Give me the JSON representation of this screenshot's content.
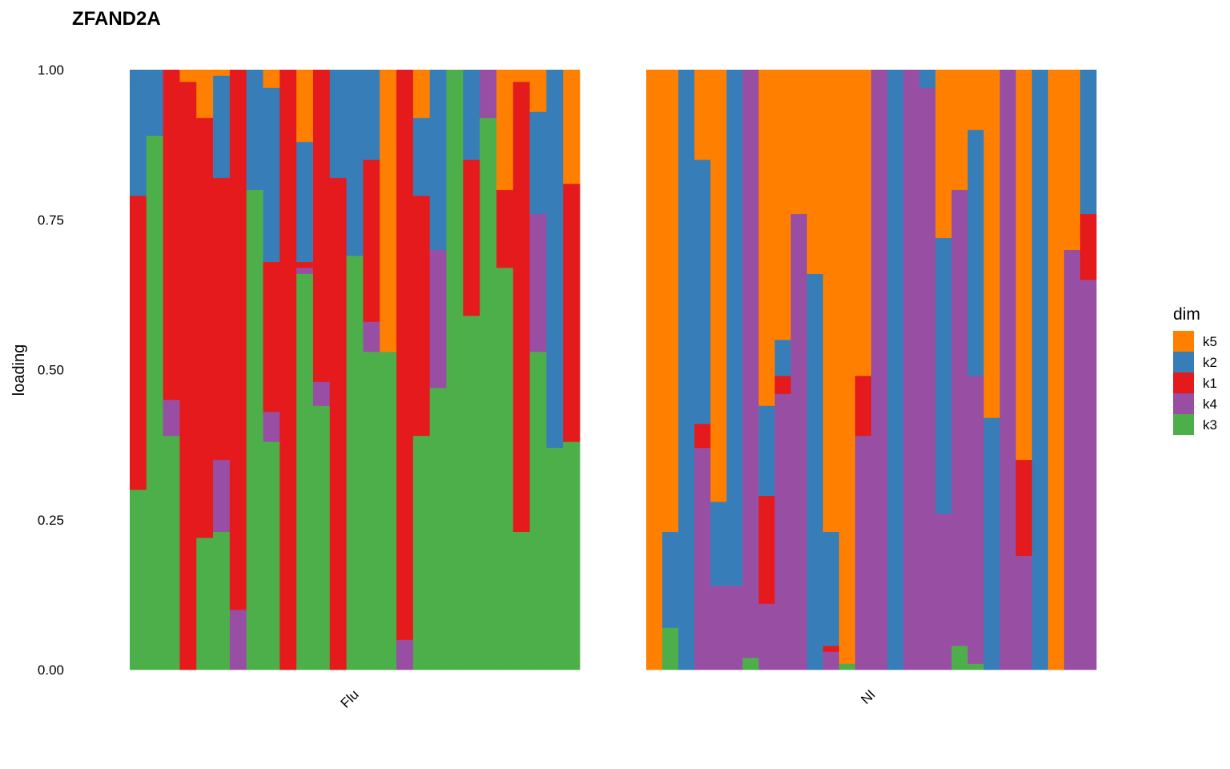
{
  "chart_data": {
    "type": "bar",
    "stacked": true,
    "title": "ZFAND2A",
    "ylabel": "loading",
    "xlabel": "",
    "ylim": [
      0,
      1
    ],
    "yticks": [
      "0.00",
      "0.25",
      "0.50",
      "0.75",
      "1.00"
    ],
    "grid": false,
    "legend": {
      "title": "dim",
      "placement": "right",
      "entries": [
        {
          "label": "k5",
          "color": "#FF7F00"
        },
        {
          "label": "k2",
          "color": "#377EB8"
        },
        {
          "label": "k1",
          "color": "#E41A1C"
        },
        {
          "label": "k4",
          "color": "#984EA3"
        },
        {
          "label": "k3",
          "color": "#4DAF4A"
        }
      ]
    },
    "stack_order_bottom_to_top": [
      "k3",
      "k4",
      "k1",
      "k2",
      "k5"
    ],
    "facets": [
      {
        "label": "Flu",
        "bars": [
          {
            "k3": 0.3,
            "k4": 0.0,
            "k1": 0.49,
            "k2": 0.21,
            "k5": 0.0
          },
          {
            "k3": 0.89,
            "k4": 0.0,
            "k1": 0.0,
            "k2": 0.11,
            "k5": 0.0
          },
          {
            "k3": 0.39,
            "k4": 0.06,
            "k1": 0.55,
            "k2": 0.0,
            "k5": 0.0
          },
          {
            "k3": 0.0,
            "k4": 0.0,
            "k1": 0.98,
            "k2": 0.0,
            "k5": 0.02
          },
          {
            "k3": 0.22,
            "k4": 0.0,
            "k1": 0.7,
            "k2": 0.0,
            "k5": 0.08
          },
          {
            "k3": 0.23,
            "k4": 0.12,
            "k1": 0.47,
            "k2": 0.17,
            "k5": 0.01
          },
          {
            "k3": 0.0,
            "k4": 0.1,
            "k1": 0.9,
            "k2": 0.0,
            "k5": 0.0
          },
          {
            "k3": 0.8,
            "k4": 0.0,
            "k1": 0.0,
            "k2": 0.2,
            "k5": 0.0
          },
          {
            "k3": 0.38,
            "k4": 0.05,
            "k1": 0.25,
            "k2": 0.29,
            "k5": 0.03
          },
          {
            "k3": 0.0,
            "k4": 0.0,
            "k1": 1.0,
            "k2": 0.0,
            "k5": 0.0
          },
          {
            "k3": 0.66,
            "k4": 0.01,
            "k1": 0.01,
            "k2": 0.2,
            "k5": 0.12
          },
          {
            "k3": 0.44,
            "k4": 0.04,
            "k1": 0.52,
            "k2": 0.0,
            "k5": 0.0
          },
          {
            "k3": 0.0,
            "k4": 0.0,
            "k1": 0.82,
            "k2": 0.18,
            "k5": 0.0
          },
          {
            "k3": 0.69,
            "k4": 0.0,
            "k1": 0.0,
            "k2": 0.31,
            "k5": 0.0
          },
          {
            "k3": 0.53,
            "k4": 0.05,
            "k1": 0.27,
            "k2": 0.15,
            "k5": 0.0
          },
          {
            "k3": 0.53,
            "k4": 0.0,
            "k1": 0.0,
            "k2": 0.0,
            "k5": 0.47
          },
          {
            "k3": 0.0,
            "k4": 0.05,
            "k1": 0.95,
            "k2": 0.0,
            "k5": 0.0
          },
          {
            "k3": 0.39,
            "k4": 0.0,
            "k1": 0.4,
            "k2": 0.13,
            "k5": 0.08
          },
          {
            "k3": 0.47,
            "k4": 0.23,
            "k1": 0.0,
            "k2": 0.3,
            "k5": 0.0
          },
          {
            "k3": 0.91,
            "k4": 0.0,
            "k1": 0.0,
            "k2": 0.0,
            "k5": 0.0
          },
          {
            "k3": 0.59,
            "k4": 0.0,
            "k1": 0.26,
            "k2": 0.15,
            "k5": 0.0
          },
          {
            "k3": 0.92,
            "k4": 0.08,
            "k1": 0.0,
            "k2": 0.0,
            "k5": 0.0
          },
          {
            "k3": 0.67,
            "k4": 0.0,
            "k1": 0.13,
            "k2": 0.0,
            "k5": 0.2
          },
          {
            "k3": 0.23,
            "k4": 0.0,
            "k1": 0.75,
            "k2": 0.0,
            "k5": 0.02
          },
          {
            "k3": 0.53,
            "k4": 0.23,
            "k1": 0.0,
            "k2": 0.17,
            "k5": 0.07
          },
          {
            "k3": 0.37,
            "k4": 0.0,
            "k1": 0.0,
            "k2": 0.63,
            "k5": 0.0
          },
          {
            "k3": 0.38,
            "k4": 0.0,
            "k1": 0.43,
            "k2": 0.0,
            "k5": 0.19
          }
        ]
      },
      {
        "label": "NI",
        "bars": [
          {
            "k3": 0.0,
            "k4": 0.0,
            "k1": 0.0,
            "k2": 0.0,
            "k5": 1.0
          },
          {
            "k3": 0.07,
            "k4": 0.0,
            "k1": 0.0,
            "k2": 0.16,
            "k5": 0.77
          },
          {
            "k3": 0.0,
            "k4": 0.0,
            "k1": 0.0,
            "k2": 1.0,
            "k5": 0.0
          },
          {
            "k3": 0.0,
            "k4": 0.37,
            "k1": 0.04,
            "k2": 0.44,
            "k5": 0.15
          },
          {
            "k3": 0.0,
            "k4": 0.14,
            "k1": 0.0,
            "k2": 0.14,
            "k5": 0.72
          },
          {
            "k3": 0.0,
            "k4": 0.14,
            "k1": 0.0,
            "k2": 0.86,
            "k5": 0.0
          },
          {
            "k3": 0.02,
            "k4": 0.98,
            "k1": 0.0,
            "k2": 0.0,
            "k5": 0.0
          },
          {
            "k3": 0.0,
            "k4": 0.11,
            "k1": 0.18,
            "k2": 0.15,
            "k5": 0.56
          },
          {
            "k3": 0.0,
            "k4": 0.46,
            "k1": 0.03,
            "k2": 0.06,
            "k5": 0.45
          },
          {
            "k3": 0.0,
            "k4": 0.76,
            "k1": 0.0,
            "k2": 0.0,
            "k5": 0.24
          },
          {
            "k3": 0.0,
            "k4": 0.0,
            "k1": 0.0,
            "k2": 0.66,
            "k5": 0.34
          },
          {
            "k3": 0.0,
            "k4": 0.03,
            "k1": 0.01,
            "k2": 0.19,
            "k5": 0.77
          },
          {
            "k3": 0.01,
            "k4": 0.0,
            "k1": 0.0,
            "k2": 0.0,
            "k5": 0.99
          },
          {
            "k3": 0.0,
            "k4": 0.39,
            "k1": 0.1,
            "k2": 0.0,
            "k5": 0.51
          },
          {
            "k3": 0.0,
            "k4": 1.0,
            "k1": 0.0,
            "k2": 0.0,
            "k5": 0.0
          },
          {
            "k3": 0.0,
            "k4": 0.0,
            "k1": 0.0,
            "k2": 1.0,
            "k5": 0.0
          },
          {
            "k3": 0.0,
            "k4": 1.0,
            "k1": 0.0,
            "k2": 0.0,
            "k5": 0.0
          },
          {
            "k3": 0.0,
            "k4": 0.97,
            "k1": 0.0,
            "k2": 0.03,
            "k5": 0.0
          },
          {
            "k3": 0.0,
            "k4": 0.26,
            "k1": 0.0,
            "k2": 0.46,
            "k5": 0.28
          },
          {
            "k3": 0.04,
            "k4": 0.76,
            "k1": 0.0,
            "k2": 0.0,
            "k5": 0.2
          },
          {
            "k3": 0.01,
            "k4": 0.48,
            "k1": 0.0,
            "k2": 0.41,
            "k5": 0.1
          },
          {
            "k3": 0.0,
            "k4": 0.0,
            "k1": 0.0,
            "k2": 0.42,
            "k5": 0.58
          },
          {
            "k3": 0.0,
            "k4": 1.0,
            "k1": 0.0,
            "k2": 0.0,
            "k5": 0.0
          },
          {
            "k3": 0.0,
            "k4": 0.19,
            "k1": 0.16,
            "k2": 0.0,
            "k5": 0.65
          },
          {
            "k3": 0.0,
            "k4": 0.0,
            "k1": 0.0,
            "k2": 1.0,
            "k5": 0.0
          },
          {
            "k3": 0.0,
            "k4": 0.0,
            "k1": 0.0,
            "k2": 0.0,
            "k5": 1.0
          },
          {
            "k3": 0.0,
            "k4": 0.7,
            "k1": 0.0,
            "k2": 0.0,
            "k5": 0.3
          },
          {
            "k3": 0.0,
            "k4": 0.65,
            "k1": 0.11,
            "k2": 0.24,
            "k5": 0.0
          }
        ]
      }
    ]
  }
}
